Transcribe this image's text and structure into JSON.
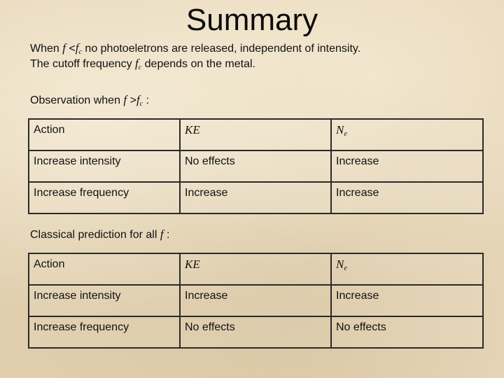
{
  "title": "Summary",
  "intro": {
    "line1": {
      "pre": "When ",
      "f": "f",
      "lt": " <",
      "fc": "f",
      "c": "c",
      "post": " no photoeletrons are released, independent of intensity."
    },
    "line2": {
      "pre": "The cutoff frequency ",
      "fc": "f",
      "c": "c",
      "post": " depends on the metal."
    },
    "obs": {
      "pre": "Observation when ",
      "f": "f",
      "gt": " >",
      "fc": "f",
      "c": "c",
      "post": " :"
    }
  },
  "table1": {
    "headers": [
      "Action",
      "KE",
      "N",
      "e"
    ],
    "rows": [
      [
        "Increase intensity",
        "No effects",
        "Increase"
      ],
      [
        "Increase frequency",
        "Increase",
        "Increase"
      ]
    ]
  },
  "classical": {
    "pre": "Classical prediction for all ",
    "f": "f",
    "post": " :"
  },
  "table2": {
    "headers": [
      "Action",
      "KE",
      "N",
      "e"
    ],
    "rows": [
      [
        "Increase intensity",
        "Increase",
        "Increase"
      ],
      [
        "Increase frequency",
        "No effects",
        "No effects"
      ]
    ]
  }
}
